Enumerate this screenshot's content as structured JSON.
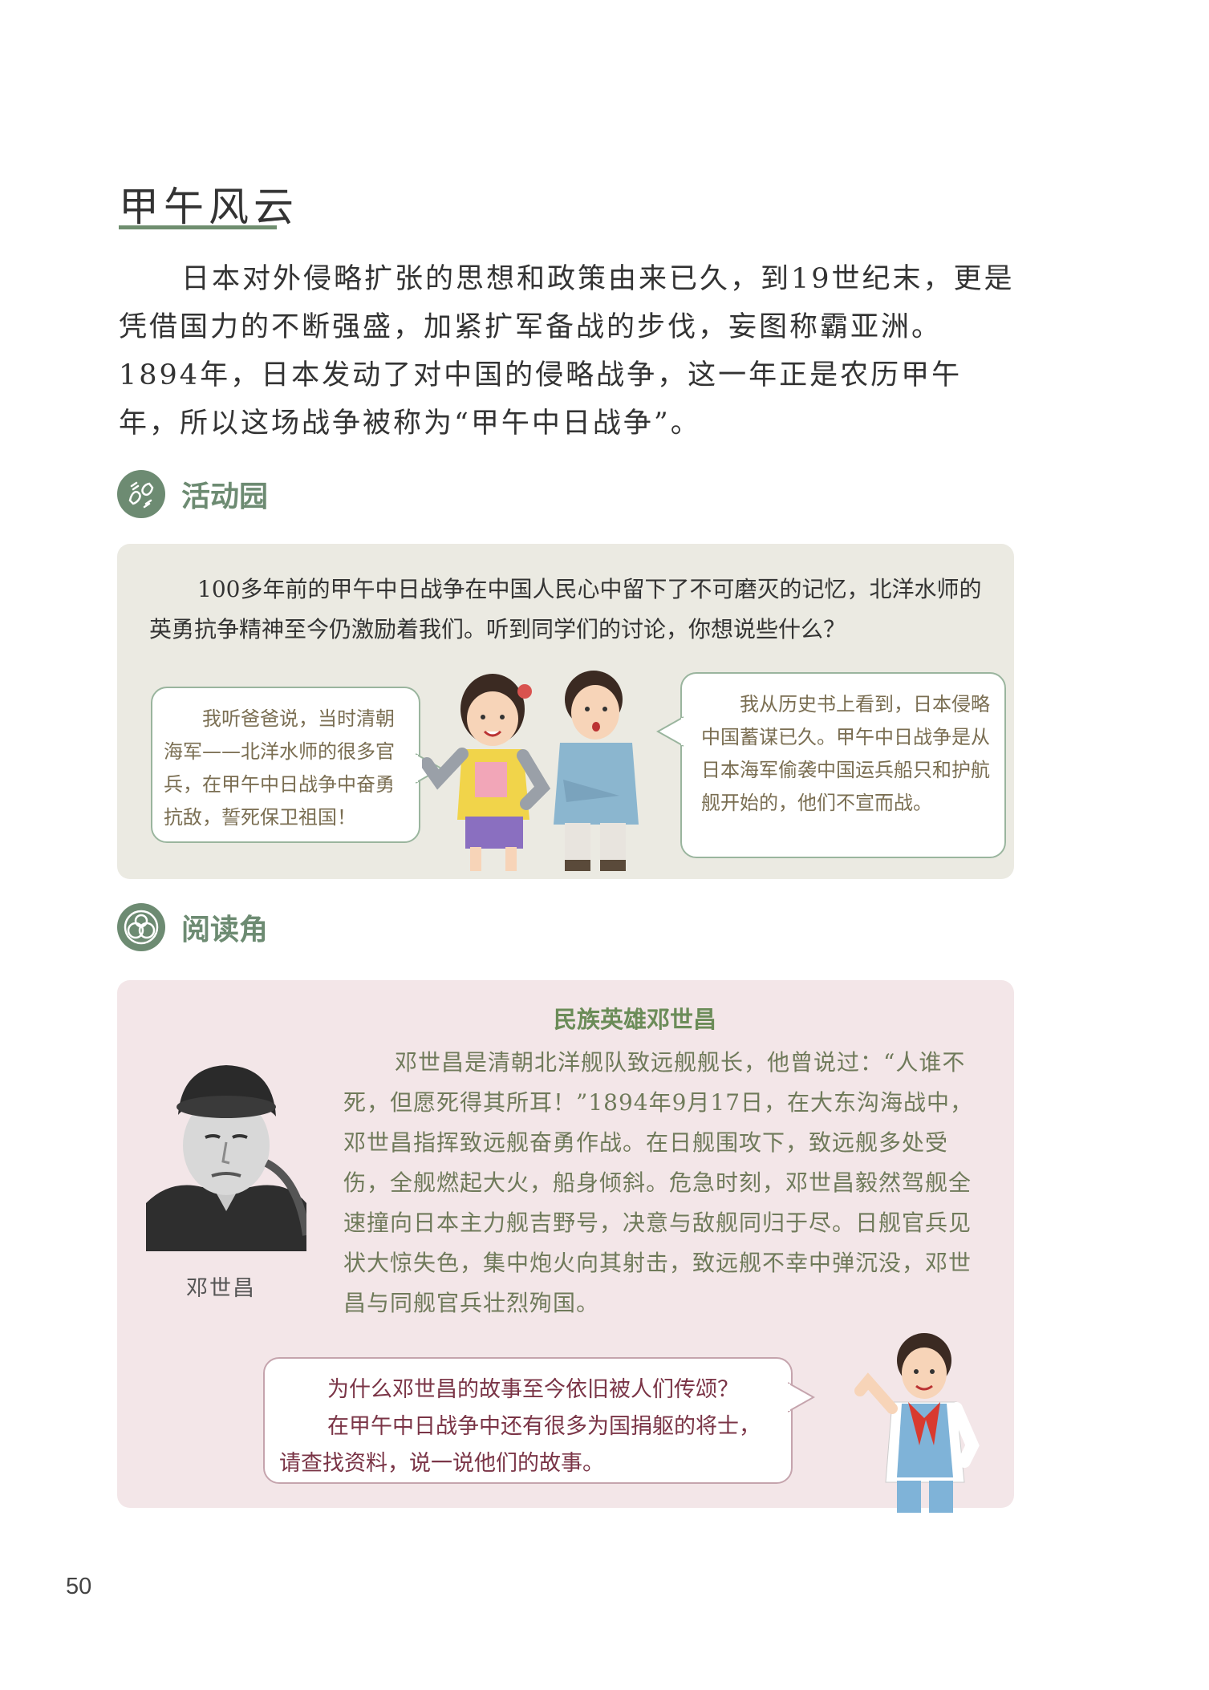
{
  "section_title": "甲午风云",
  "intro_paragraph": "日本对外侵略扩张的思想和政策由来已久，到19世纪末，更是凭借国力的不断强盛，加紧扩军备战的步伐，妄图称霸亚洲。1894年，日本发动了对中国的侵略战争，这一年正是农历甲午年，所以这场战争被称为“甲午中日战争”。",
  "activity": {
    "heading": "活动园",
    "prompt": "100多年前的甲午中日战争在中国人民心中留下了不可磨灭的记忆，北洋水师的英勇抗争精神至今仍激励着我们。听到同学们的讨论，你想说些什么？",
    "bubble_left": "我听爸爸说，当时清朝海军——北洋水师的很多官兵，在甲午中日战争中奋勇抗敌，誓死保卫祖国！",
    "bubble_right": "我从历史书上看到，日本侵略中国蓄谋已久。甲午中日战争是从日本海军偷袭中国运兵船只和护航舰开始的，他们不宣而战。"
  },
  "reading": {
    "heading": "阅读角",
    "title": "民族英雄邓世昌",
    "body": "邓世昌是清朝北洋舰队致远舰舰长，他曾说过：“人谁不死，但愿死得其所耳！”1894年9月17日，在大东沟海战中，邓世昌指挥致远舰奋勇作战。在日舰围攻下，致远舰多处受伤，全舰燃起大火，船身倾斜。危急时刻，邓世昌毅然驾舰全速撞向日本主力舰吉野号，决意与敌舰同归于尽。日舰官兵见状大惊失色，集中炮火向其射击，致远舰不幸中弹沉没，邓世昌与同舰官兵壮烈殉国。",
    "portrait_caption": "邓世昌",
    "question_line1": "为什么邓世昌的故事至今依旧被人们传颂？",
    "question_line2": "在甲午中日战争中还有很多为国捐躯的将士，请查找资料，说一说他们的故事。"
  },
  "page_number": "50",
  "colors": {
    "section_green": "#6d8b72",
    "activity_bg": "#ebeae2",
    "reading_bg": "#f3e6e8",
    "question_text": "#7a3446"
  },
  "icons": [
    "activity-hands-icon",
    "reading-circles-icon"
  ]
}
